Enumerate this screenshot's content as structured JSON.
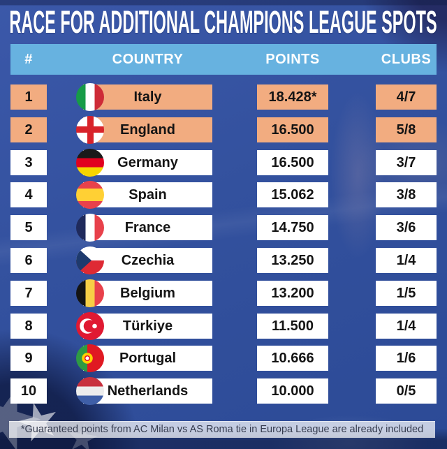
{
  "title": "RACE FOR ADDITIONAL CHAMPIONS LEAGUE SPOTS",
  "table": {
    "headers": {
      "rank": "#",
      "country": "COUNTRY",
      "points": "POINTS",
      "clubs": "CLUBS"
    },
    "rows": [
      {
        "rank": "1",
        "country": "Italy",
        "points": "18.428*",
        "clubs": "4/7",
        "highlighted": true,
        "flag": "italy"
      },
      {
        "rank": "2",
        "country": "England",
        "points": "16.500",
        "clubs": "5/8",
        "highlighted": true,
        "flag": "england"
      },
      {
        "rank": "3",
        "country": "Germany",
        "points": "16.500",
        "clubs": "3/7",
        "highlighted": false,
        "flag": "germany"
      },
      {
        "rank": "4",
        "country": "Spain",
        "points": "15.062",
        "clubs": "3/8",
        "highlighted": false,
        "flag": "spain"
      },
      {
        "rank": "5",
        "country": "France",
        "points": "14.750",
        "clubs": "3/6",
        "highlighted": false,
        "flag": "france"
      },
      {
        "rank": "6",
        "country": "Czechia",
        "points": "13.250",
        "clubs": "1/4",
        "highlighted": false,
        "flag": "czechia"
      },
      {
        "rank": "7",
        "country": "Belgium",
        "points": "13.200",
        "clubs": "1/5",
        "highlighted": false,
        "flag": "belgium"
      },
      {
        "rank": "8",
        "country": "Türkiye",
        "points": "11.500",
        "clubs": "1/4",
        "highlighted": false,
        "flag": "turkiye"
      },
      {
        "rank": "9",
        "country": "Portugal",
        "points": "10.666",
        "clubs": "1/6",
        "highlighted": false,
        "flag": "portugal"
      },
      {
        "rank": "10",
        "country": "Netherlands",
        "points": "10.000",
        "clubs": "0/5",
        "highlighted": false,
        "flag": "netherlands"
      }
    ]
  },
  "footnote": "*Guaranteed points from AC Milan vs AS Roma tie in Europa League are already included",
  "chart_data": {
    "type": "table",
    "title": "RACE FOR ADDITIONAL CHAMPIONS LEAGUE SPOTS",
    "columns": [
      "#",
      "COUNTRY",
      "POINTS",
      "CLUBS"
    ],
    "rows": [
      [
        1,
        "Italy",
        "18.428*",
        "4/7"
      ],
      [
        2,
        "England",
        "16.500",
        "5/8"
      ],
      [
        3,
        "Germany",
        "16.500",
        "3/7"
      ],
      [
        4,
        "Spain",
        "15.062",
        "3/8"
      ],
      [
        5,
        "France",
        "14.750",
        "3/6"
      ],
      [
        6,
        "Czechia",
        "13.250",
        "1/4"
      ],
      [
        7,
        "Belgium",
        "13.200",
        "1/5"
      ],
      [
        8,
        "Türkiye",
        "11.500",
        "1/4"
      ],
      [
        9,
        "Portugal",
        "10.666",
        "1/6"
      ],
      [
        10,
        "Netherlands",
        "10.000",
        "0/5"
      ]
    ],
    "highlighted_rows": [
      1,
      2
    ],
    "footnote": "*Guaranteed points from AC Milan vs AS Roma tie in Europa League are already included"
  },
  "colors": {
    "highlight": "#F2AC80",
    "header_bg": "#67B2E0",
    "row_bg": "#FFFFFF",
    "background_blue": "#33519E",
    "footnote_bg": "#C5CEE4",
    "title_text": "#FFFFFF",
    "cell_text": "#141414"
  }
}
